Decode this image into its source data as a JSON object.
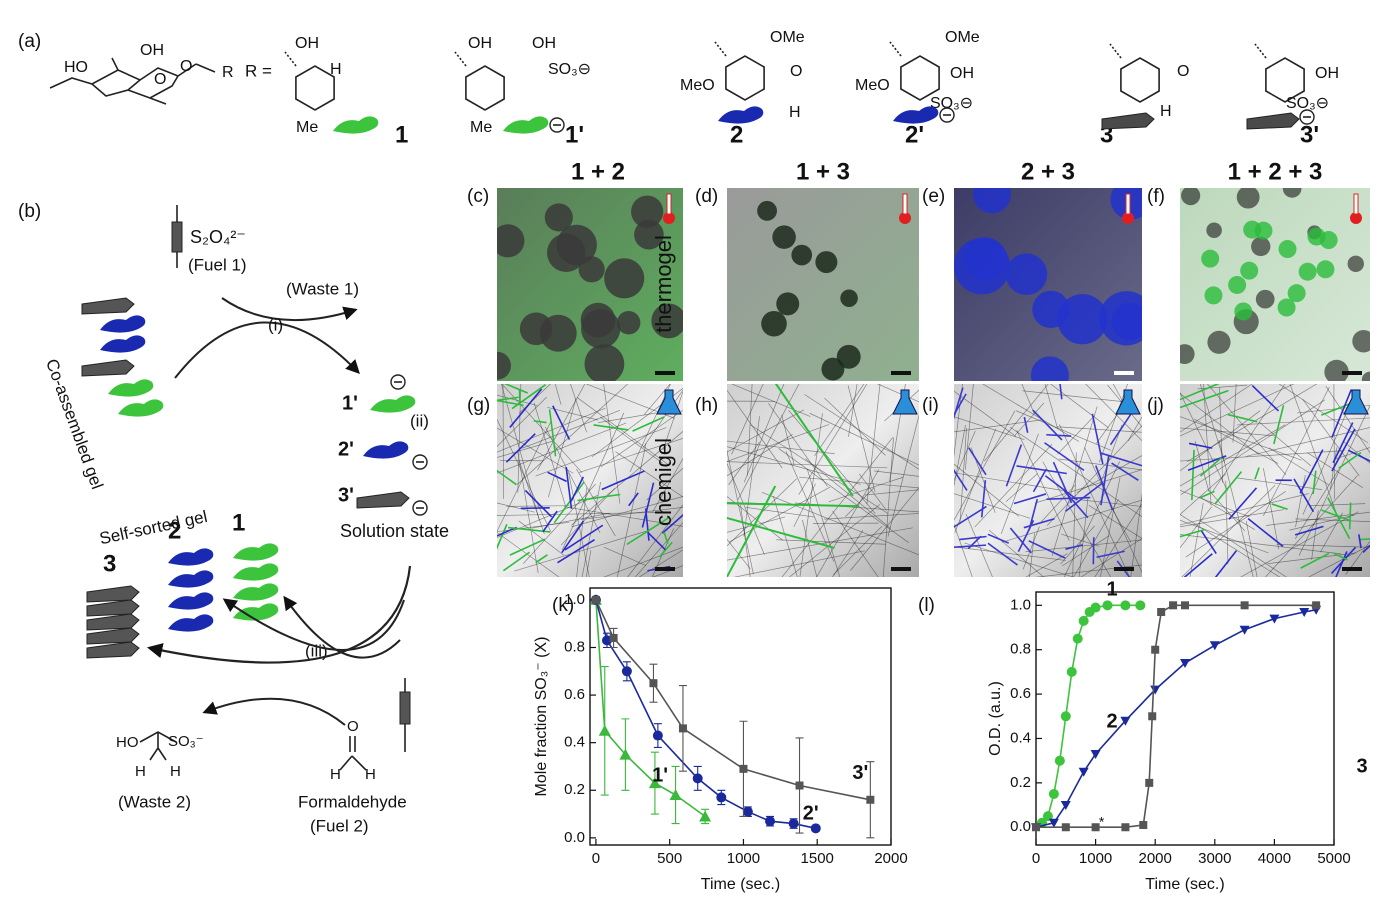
{
  "figure_labels": {
    "a": "(a)",
    "b": "(b)",
    "c": "(c)",
    "d": "(d)",
    "e": "(e)",
    "f": "(f)",
    "g": "(g)",
    "h": "(h)",
    "i": "(i)",
    "j": "(j)",
    "k": "(k)",
    "l": "(l)"
  },
  "scaffold": [
    "HO",
    "OH",
    "O",
    "O",
    "R"
  ],
  "r_equals": "R =",
  "compounds": [
    {
      "label": "1",
      "groups": [
        "OH",
        "H",
        "Me"
      ]
    },
    {
      "label": "1'",
      "groups": [
        "OH",
        "OH",
        "SO₃⊖",
        "Me"
      ]
    },
    {
      "label": "2",
      "groups": [
        "OMe",
        "MeO",
        "O",
        "H"
      ]
    },
    {
      "label": "2'",
      "groups": [
        "OMe",
        "MeO",
        "OH",
        "SO₃⊖"
      ]
    },
    {
      "label": "3",
      "groups": [
        "O",
        "H"
      ]
    },
    {
      "label": "3'",
      "groups": [
        "OH",
        "SO₃⊖"
      ]
    }
  ],
  "scheme": {
    "fuel_1_reagent": "S₂O₄²⁻",
    "fuel_1": "(Fuel 1)",
    "waste_1": "(Waste 1)",
    "step_i": "(i)",
    "step_ii": "(ii)",
    "step_iii": "(iii)",
    "co_assembled": "Co-assembled gel",
    "solution_labels": [
      "1'",
      "2'",
      "3'"
    ],
    "solution_state": "Solution state",
    "self_sorted": "Self-sorted gel",
    "sorted_labels": [
      "1",
      "2",
      "3"
    ],
    "waste_2_structure": [
      "HO",
      "SO₃⁻",
      "H",
      "H"
    ],
    "waste_2": "(Waste 2)",
    "formaldehyde_structure": [
      "O",
      "H",
      "H"
    ],
    "formaldehyde": "Formaldehyde",
    "fuel_2": "(Fuel 2)"
  },
  "micrographs": {
    "columns": [
      "1 + 2",
      "1 + 3",
      "2 + 3",
      "1 + 2 + 3"
    ],
    "rows": [
      "thermogel",
      "chemigel"
    ]
  },
  "chart_data": [
    {
      "type": "line",
      "xlabel": "Time (sec.)",
      "ylabel": "Mole fraction SO₃⁻ (X)",
      "xlim": [
        -40,
        2000
      ],
      "ylim": [
        -0.03,
        1.05
      ],
      "xticks": [
        0,
        500,
        1000,
        1500,
        2000
      ],
      "yticks": [
        {
          "value": 0,
          "label": "0.0"
        },
        {
          "value": 0.2,
          "label": "0.2"
        },
        {
          "value": 0.4,
          "label": "0.4"
        },
        {
          "value": 0.6,
          "label": "0.6"
        },
        {
          "value": 0.8,
          "label": "0.8"
        },
        {
          "value": 1,
          "label": "1.0"
        }
      ],
      "series": [
        {
          "name": "1'",
          "color": "#3cb83c",
          "marker": "triangle",
          "x": [
            0,
            60,
            200,
            400,
            540,
            740
          ],
          "values": [
            1.0,
            0.45,
            0.35,
            0.23,
            0.18,
            0.09
          ],
          "errors": [
            0,
            0.27,
            0.15,
            0.13,
            0.12,
            0.03
          ]
        },
        {
          "name": "2'",
          "color": "#1a2a9c",
          "marker": "circle",
          "x": [
            0,
            75,
            210,
            420,
            690,
            850,
            1030,
            1180,
            1340,
            1490
          ],
          "values": [
            1.0,
            0.83,
            0.7,
            0.43,
            0.25,
            0.17,
            0.11,
            0.07,
            0.06,
            0.04
          ],
          "errors": [
            0,
            0.03,
            0.04,
            0.05,
            0.05,
            0.03,
            0.02,
            0.02,
            0.02,
            0.01
          ]
        },
        {
          "name": "3'",
          "color": "#555555",
          "marker": "square",
          "x": [
            0,
            120,
            390,
            590,
            1000,
            1380,
            1860
          ],
          "values": [
            1.0,
            0.84,
            0.65,
            0.46,
            0.29,
            0.22,
            0.16
          ],
          "errors": [
            0,
            0.04,
            0.08,
            0.18,
            0.2,
            0.2,
            0.16
          ]
        }
      ]
    },
    {
      "type": "line",
      "xlabel": "Time (sec.)",
      "ylabel": "O.D. (a.u.)",
      "annotation": "*",
      "xlim": [
        0,
        5000
      ],
      "ylim": [
        -0.08,
        1.06
      ],
      "xticks": [
        0,
        1000,
        2000,
        3000,
        4000,
        5000
      ],
      "yticks": [
        {
          "value": 0,
          "label": "0.0"
        },
        {
          "value": 0.2,
          "label": "0.2"
        },
        {
          "value": 0.4,
          "label": "0.4"
        },
        {
          "value": 0.6,
          "label": "0.6"
        },
        {
          "value": 0.8,
          "label": "0.8"
        },
        {
          "value": 1,
          "label": "1.0"
        }
      ],
      "series": [
        {
          "name": "1",
          "color": "#3cc43c",
          "marker": "circle",
          "x": [
            100,
            200,
            300,
            400,
            500,
            600,
            700,
            800,
            900,
            1000,
            1200,
            1500,
            1750
          ],
          "values": [
            0.02,
            0.05,
            0.15,
            0.3,
            0.5,
            0.7,
            0.85,
            0.93,
            0.97,
            0.99,
            1.0,
            1.0,
            1.0
          ]
        },
        {
          "name": "2",
          "color": "#1a2a9c",
          "marker": "triangle-down",
          "x": [
            0,
            300,
            500,
            800,
            1000,
            1500,
            2000,
            2500,
            3000,
            3500,
            4000,
            4500,
            4700
          ],
          "values": [
            0,
            0.02,
            0.1,
            0.25,
            0.33,
            0.48,
            0.62,
            0.74,
            0.82,
            0.89,
            0.94,
            0.97,
            0.98
          ]
        },
        {
          "name": "3",
          "color": "#555555",
          "marker": "square",
          "x": [
            0,
            500,
            1000,
            1500,
            1800,
            1900,
            1950,
            2000,
            2100,
            2300,
            2500,
            3500,
            4700
          ],
          "values": [
            0,
            0,
            0,
            0,
            0.01,
            0.2,
            0.5,
            0.8,
            0.97,
            1.0,
            1.0,
            1.0,
            1.0
          ]
        }
      ]
    }
  ]
}
